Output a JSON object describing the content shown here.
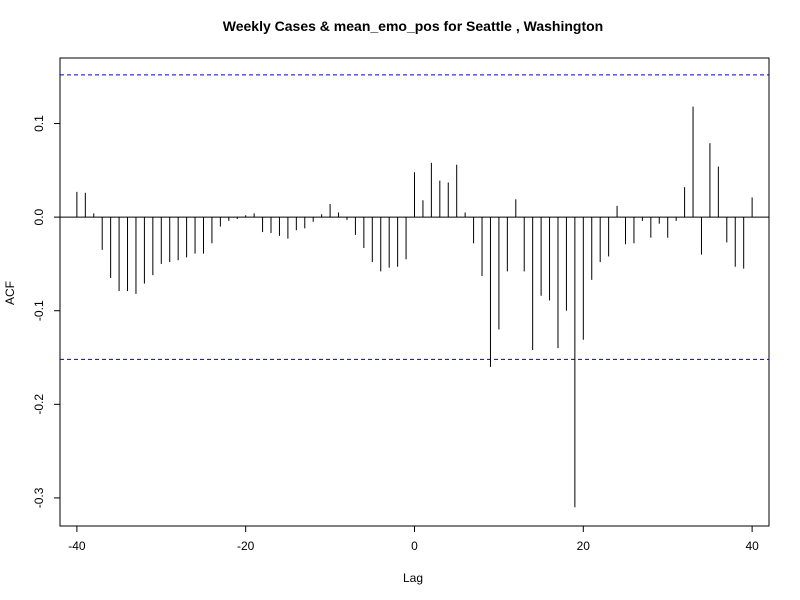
{
  "chart_data": {
    "type": "bar",
    "title": "Weekly Cases & mean_emo_pos for Seattle , Washington",
    "xlabel": "Lag",
    "ylabel": "ACF",
    "xlim": [
      -42,
      42
    ],
    "ylim": [
      -0.33,
      0.17
    ],
    "xticks": [
      -40,
      -20,
      0,
      20,
      40
    ],
    "yticks": [
      -0.3,
      -0.2,
      -0.1,
      0.0,
      0.1
    ],
    "ytick_labels": [
      "-0.3",
      "-0.2",
      "-0.1",
      "0.0",
      "0.1"
    ],
    "confidence_bound": 0.152,
    "line_color": "#000000",
    "ci_color": "#0000CD",
    "lags": [
      -40,
      -39,
      -38,
      -37,
      -36,
      -35,
      -34,
      -33,
      -32,
      -31,
      -30,
      -29,
      -28,
      -27,
      -26,
      -25,
      -24,
      -23,
      -22,
      -21,
      -20,
      -19,
      -18,
      -17,
      -16,
      -15,
      -14,
      -13,
      -12,
      -11,
      -10,
      -9,
      -8,
      -7,
      -6,
      -5,
      -4,
      -3,
      -2,
      -1,
      0,
      1,
      2,
      3,
      4,
      5,
      6,
      7,
      8,
      9,
      10,
      11,
      12,
      13,
      14,
      15,
      16,
      17,
      18,
      19,
      20,
      21,
      22,
      23,
      24,
      25,
      26,
      27,
      28,
      29,
      30,
      31,
      32,
      33,
      34,
      35,
      36,
      37,
      38,
      39,
      40
    ],
    "acf": [
      0.027,
      0.026,
      0.004,
      -0.035,
      -0.065,
      -0.079,
      -0.079,
      -0.082,
      -0.071,
      -0.062,
      -0.05,
      -0.048,
      -0.046,
      -0.043,
      -0.039,
      -0.039,
      -0.028,
      -0.01,
      -0.004,
      -0.002,
      0.002,
      0.004,
      -0.016,
      -0.017,
      -0.02,
      -0.023,
      -0.014,
      -0.012,
      -0.005,
      0.003,
      0.014,
      0.005,
      -0.003,
      -0.019,
      -0.033,
      -0.048,
      -0.058,
      -0.054,
      -0.053,
      -0.045,
      0.048,
      0.018,
      0.058,
      0.039,
      0.037,
      0.056,
      0.005,
      -0.028,
      -0.063,
      -0.16,
      -0.12,
      -0.058,
      0.019,
      -0.058,
      -0.142,
      -0.084,
      -0.089,
      -0.14,
      -0.1,
      -0.31,
      -0.131,
      -0.067,
      -0.048,
      -0.042,
      0.012,
      -0.029,
      -0.028,
      -0.004,
      -0.022,
      -0.007,
      -0.022,
      -0.004,
      0.032,
      0.118,
      -0.04,
      0.079,
      0.054,
      -0.027,
      -0.053,
      -0.055,
      0.021
    ]
  }
}
